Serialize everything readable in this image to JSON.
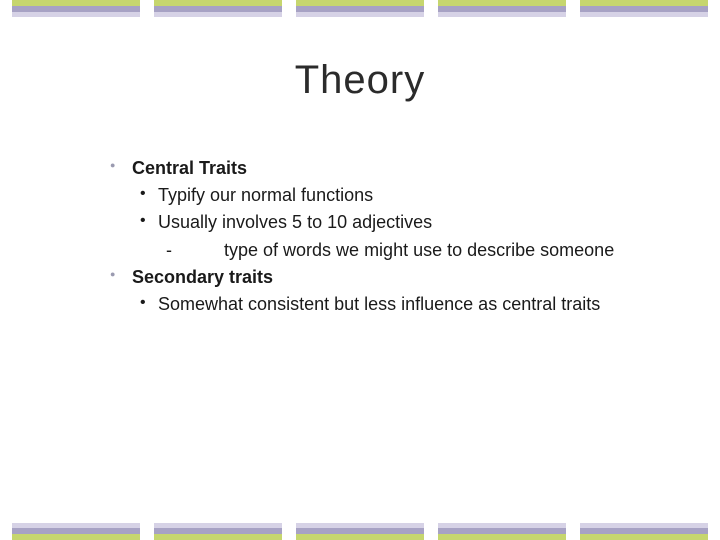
{
  "border": {
    "segments": 5,
    "colors": {
      "a": "#c6d66e",
      "b": "#a7a2c4",
      "c": "#d6d2e6"
    }
  },
  "title": "Theory",
  "bullets": {
    "item1": {
      "head": "Central Traits",
      "sub1": "Typify our normal functions",
      "sub2": "Usually involves 5 to 10 adjectives",
      "sub2a_dash": "-",
      "sub2a": "type of words we might use to describe someone"
    },
    "item2": {
      "head": "Secondary traits",
      "sub1": "Somewhat consistent but less influence as central traits"
    }
  }
}
